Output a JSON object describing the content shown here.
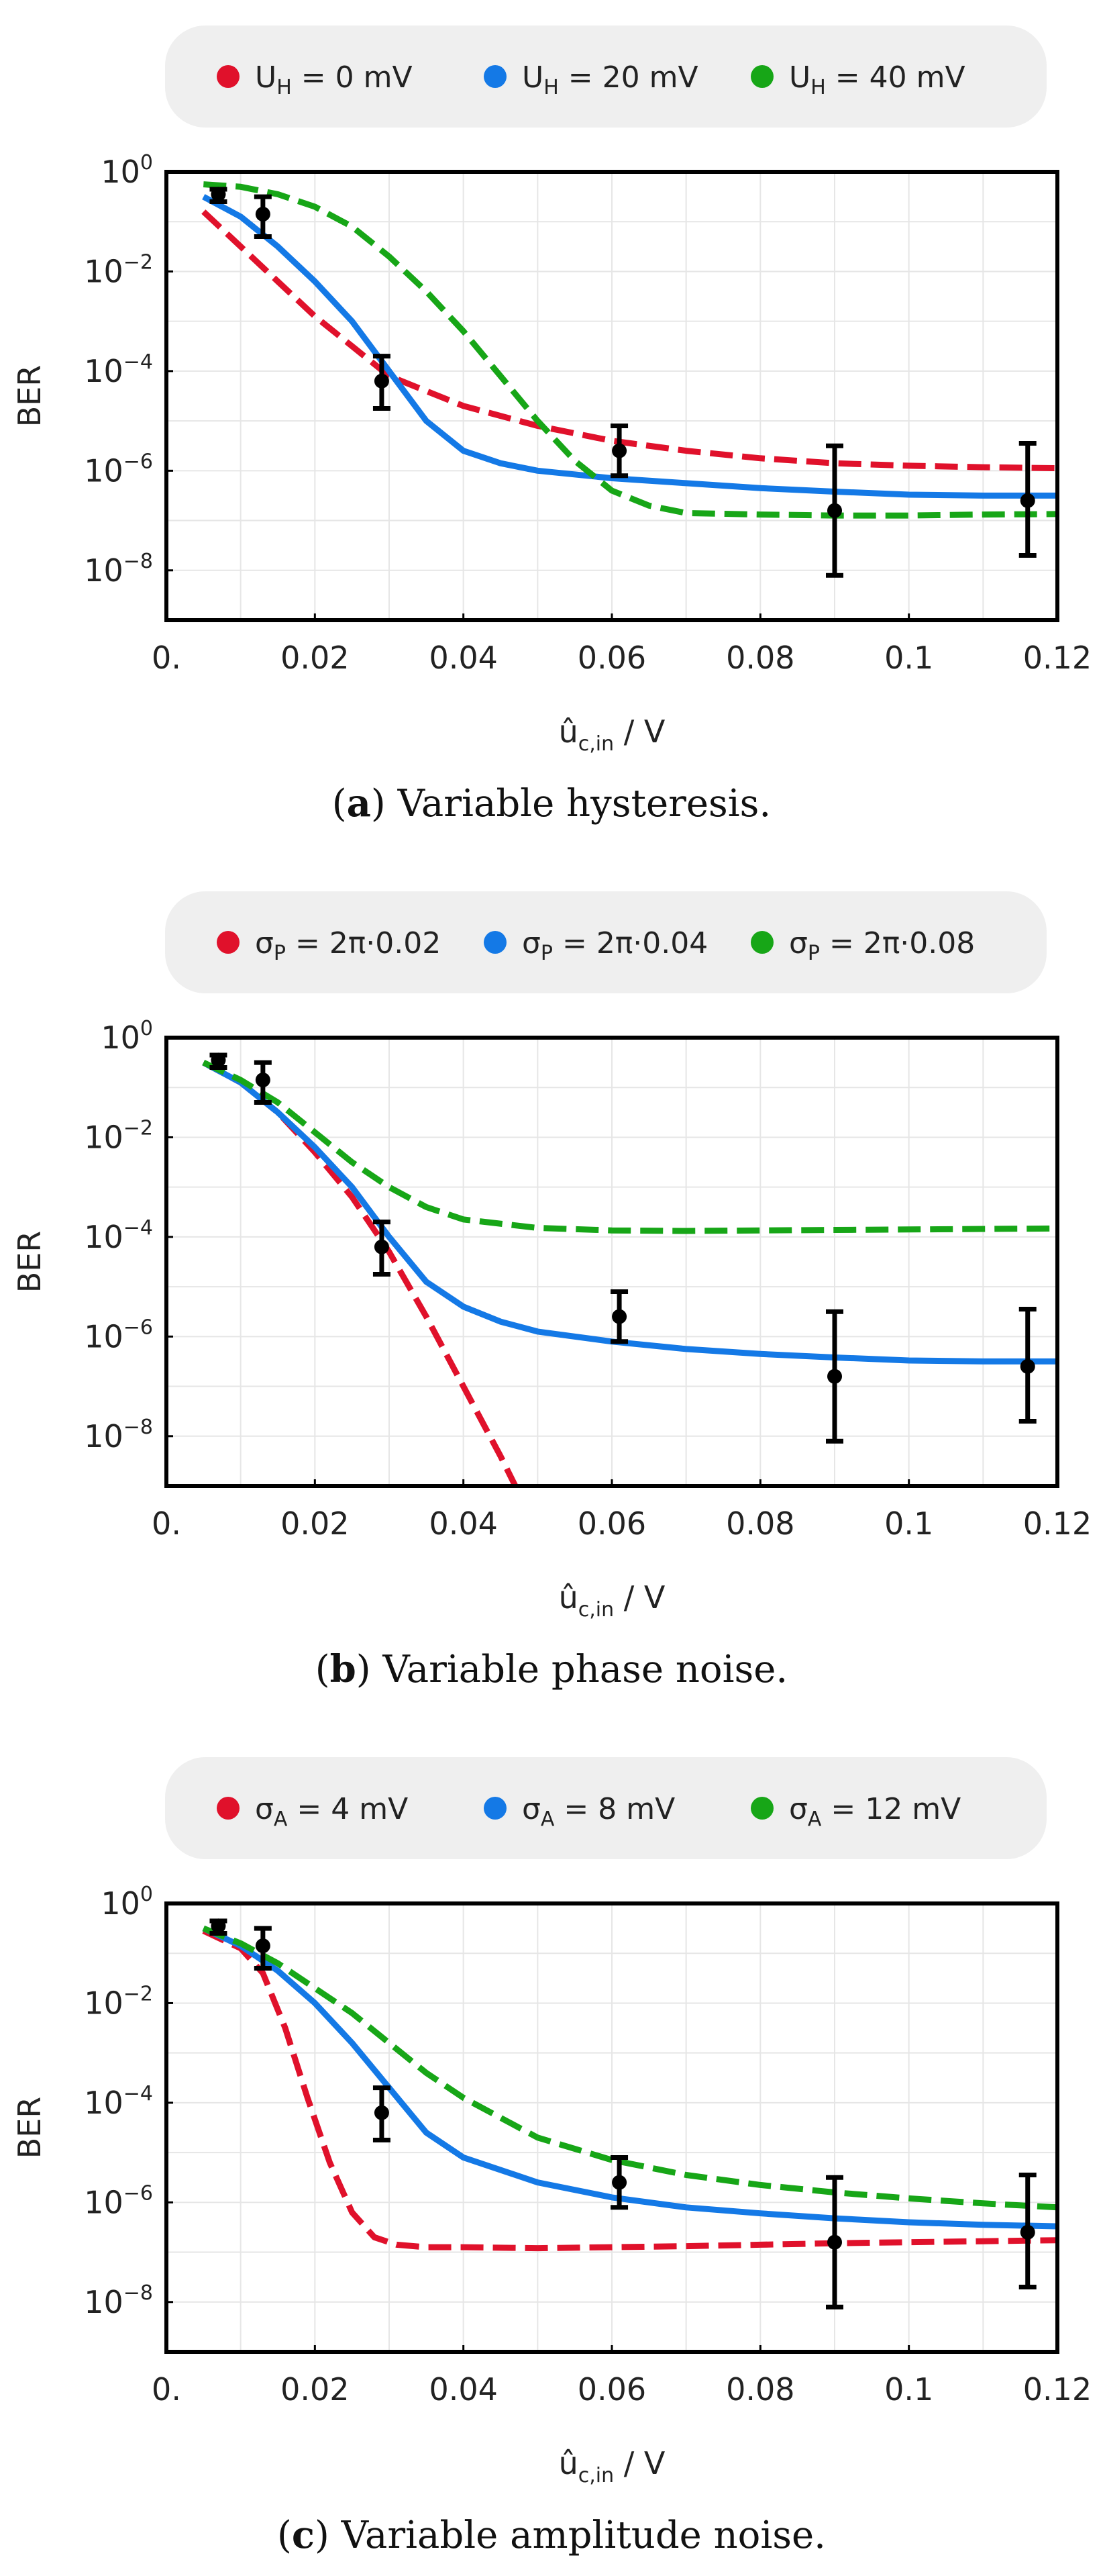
{
  "colors": {
    "red": "#e0112b",
    "blue": "#1479e6",
    "green": "#17a617",
    "legend_bg": "#efefef"
  },
  "chart_data": [
    {
      "type": "line",
      "panel": "a",
      "caption": {
        "letter": "a",
        "text": "Variable hysteresis."
      },
      "title": "",
      "xlabel": "û",
      "xlabel_sub": "c,in",
      "xlabel_unit": " / V",
      "ylabel": "BER",
      "xlim": [
        0.0,
        0.12
      ],
      "ylim_log10": [
        -9,
        0
      ],
      "x_ticks": [
        0,
        0.02,
        0.04,
        0.06,
        0.08,
        0.1,
        0.12
      ],
      "x_tick_labels": [
        "0.",
        "0.02",
        "0.04",
        "0.06",
        "0.08",
        "0.1",
        "0.12"
      ],
      "y_ticks_exp": [
        0,
        -2,
        -4,
        -6,
        -8
      ],
      "y_tick_base": "10",
      "y_tick_exps": [
        "0",
        "−2",
        "−4",
        "−6",
        "−8"
      ],
      "legend": [
        {
          "pre": "U",
          "sub": "H",
          "post": " = 0 mV",
          "color": "red"
        },
        {
          "pre": "U",
          "sub": "H",
          "post": " = 20 mV",
          "color": "blue"
        },
        {
          "pre": "U",
          "sub": "H",
          "post": " = 40 mV",
          "color": "green"
        }
      ],
      "series": [
        {
          "name": "UH = 0 mV",
          "color": "red",
          "dashed": true,
          "x": [
            0.005,
            0.01,
            0.015,
            0.02,
            0.025,
            0.03,
            0.04,
            0.05,
            0.06,
            0.07,
            0.08,
            0.09,
            0.1,
            0.11,
            0.12
          ],
          "log10y": [
            -0.8,
            -1.5,
            -2.2,
            -2.9,
            -3.5,
            -4.1,
            -4.7,
            -5.1,
            -5.4,
            -5.6,
            -5.75,
            -5.85,
            -5.9,
            -5.93,
            -5.95
          ]
        },
        {
          "name": "UH = 20 mV",
          "color": "blue",
          "dashed": false,
          "x": [
            0.005,
            0.01,
            0.015,
            0.02,
            0.025,
            0.03,
            0.035,
            0.04,
            0.045,
            0.05,
            0.06,
            0.07,
            0.08,
            0.09,
            0.1,
            0.11,
            0.12
          ],
          "log10y": [
            -0.5,
            -0.9,
            -1.5,
            -2.2,
            -3.0,
            -4.0,
            -5.0,
            -5.6,
            -5.85,
            -6.0,
            -6.15,
            -6.25,
            -6.35,
            -6.42,
            -6.48,
            -6.5,
            -6.5
          ]
        },
        {
          "name": "UH = 40 mV",
          "color": "green",
          "dashed": true,
          "x": [
            0.005,
            0.01,
            0.015,
            0.02,
            0.025,
            0.03,
            0.035,
            0.04,
            0.045,
            0.05,
            0.055,
            0.06,
            0.065,
            0.07,
            0.08,
            0.09,
            0.1,
            0.11,
            0.12
          ],
          "log10y": [
            -0.25,
            -0.3,
            -0.45,
            -0.7,
            -1.1,
            -1.7,
            -2.4,
            -3.2,
            -4.1,
            -5.0,
            -5.8,
            -6.4,
            -6.7,
            -6.85,
            -6.88,
            -6.9,
            -6.9,
            -6.88,
            -6.87
          ]
        }
      ],
      "error_bars": [
        {
          "x": 0.007,
          "log10y": -0.45,
          "low": -0.6,
          "high": -0.35
        },
        {
          "x": 0.013,
          "log10y": -0.85,
          "low": -1.3,
          "high": -0.5
        },
        {
          "x": 0.029,
          "log10y": -4.2,
          "low": -4.75,
          "high": -3.7
        },
        {
          "x": 0.061,
          "log10y": -5.6,
          "low": -6.1,
          "high": -5.1
        },
        {
          "x": 0.09,
          "log10y": -6.8,
          "low": -8.1,
          "high": -5.5
        },
        {
          "x": 0.116,
          "log10y": -6.6,
          "low": -7.7,
          "high": -5.45
        }
      ]
    },
    {
      "type": "line",
      "panel": "b",
      "caption": {
        "letter": "b",
        "text": "Variable phase noise."
      },
      "title": "",
      "xlabel": "û",
      "xlabel_sub": "c,in",
      "xlabel_unit": " / V",
      "ylabel": "BER",
      "xlim": [
        0.0,
        0.12
      ],
      "ylim_log10": [
        -9,
        0
      ],
      "x_ticks": [
        0,
        0.02,
        0.04,
        0.06,
        0.08,
        0.1,
        0.12
      ],
      "x_tick_labels": [
        "0.",
        "0.02",
        "0.04",
        "0.06",
        "0.08",
        "0.1",
        "0.12"
      ],
      "y_ticks_exp": [
        0,
        -2,
        -4,
        -6,
        -8
      ],
      "y_tick_base": "10",
      "y_tick_exps": [
        "0",
        "−2",
        "−4",
        "−6",
        "−8"
      ],
      "legend": [
        {
          "pre": "σ",
          "sub": "P",
          "post": " = 2π·0.02",
          "color": "red"
        },
        {
          "pre": "σ",
          "sub": "P",
          "post": " = 2π·0.04",
          "color": "blue"
        },
        {
          "pre": "σ",
          "sub": "P",
          "post": " = 2π·0.08",
          "color": "green"
        }
      ],
      "series": [
        {
          "name": "σP = 2π·0.02",
          "color": "red",
          "dashed": true,
          "x": [
            0.005,
            0.01,
            0.015,
            0.02,
            0.025,
            0.03,
            0.035,
            0.04,
            0.045,
            0.047
          ],
          "log10y": [
            -0.5,
            -0.9,
            -1.5,
            -2.3,
            -3.2,
            -4.3,
            -5.6,
            -7.0,
            -8.4,
            -9.0
          ]
        },
        {
          "name": "σP = 2π·0.04",
          "color": "blue",
          "dashed": false,
          "x": [
            0.005,
            0.01,
            0.015,
            0.02,
            0.025,
            0.03,
            0.035,
            0.04,
            0.045,
            0.05,
            0.06,
            0.07,
            0.08,
            0.09,
            0.1,
            0.11,
            0.12
          ],
          "log10y": [
            -0.5,
            -0.9,
            -1.5,
            -2.2,
            -3.0,
            -4.0,
            -4.9,
            -5.4,
            -5.7,
            -5.9,
            -6.1,
            -6.25,
            -6.35,
            -6.42,
            -6.48,
            -6.5,
            -6.5
          ]
        },
        {
          "name": "σP = 2π·0.08",
          "color": "green",
          "dashed": true,
          "x": [
            0.005,
            0.01,
            0.015,
            0.02,
            0.025,
            0.03,
            0.035,
            0.04,
            0.05,
            0.06,
            0.07,
            0.08,
            0.09,
            0.1,
            0.11,
            0.12
          ],
          "log10y": [
            -0.5,
            -0.85,
            -1.3,
            -1.9,
            -2.5,
            -3.0,
            -3.4,
            -3.65,
            -3.82,
            -3.87,
            -3.88,
            -3.87,
            -3.86,
            -3.85,
            -3.84,
            -3.83
          ]
        }
      ],
      "error_bars": [
        {
          "x": 0.007,
          "log10y": -0.45,
          "low": -0.6,
          "high": -0.35
        },
        {
          "x": 0.013,
          "log10y": -0.85,
          "low": -1.3,
          "high": -0.5
        },
        {
          "x": 0.029,
          "log10y": -4.2,
          "low": -4.75,
          "high": -3.7
        },
        {
          "x": 0.061,
          "log10y": -5.6,
          "low": -6.1,
          "high": -5.1
        },
        {
          "x": 0.09,
          "log10y": -6.8,
          "low": -8.1,
          "high": -5.5
        },
        {
          "x": 0.116,
          "log10y": -6.6,
          "low": -7.7,
          "high": -5.45
        }
      ]
    },
    {
      "type": "line",
      "panel": "c",
      "caption": {
        "letter": "c",
        "text": "Variable amplitude noise."
      },
      "title": "",
      "xlabel": "û",
      "xlabel_sub": "c,in",
      "xlabel_unit": " / V",
      "ylabel": "BER",
      "xlim": [
        0.0,
        0.12
      ],
      "ylim_log10": [
        -9,
        0
      ],
      "x_ticks": [
        0,
        0.02,
        0.04,
        0.06,
        0.08,
        0.1,
        0.12
      ],
      "x_tick_labels": [
        "0.",
        "0.02",
        "0.04",
        "0.06",
        "0.08",
        "0.1",
        "0.12"
      ],
      "y_ticks_exp": [
        0,
        -2,
        -4,
        -6,
        -8
      ],
      "y_tick_base": "10",
      "y_tick_exps": [
        "0",
        "−2",
        "−4",
        "−6",
        "−8"
      ],
      "legend": [
        {
          "pre": "σ",
          "sub": "A",
          "post": " = 4 mV",
          "color": "red"
        },
        {
          "pre": "σ",
          "sub": "A",
          "post": " = 8 mV",
          "color": "blue"
        },
        {
          "pre": "σ",
          "sub": "A",
          "post": " = 12 mV",
          "color": "green"
        }
      ],
      "series": [
        {
          "name": "σA = 4 mV",
          "color": "red",
          "dashed": true,
          "x": [
            0.005,
            0.01,
            0.013,
            0.016,
            0.019,
            0.022,
            0.025,
            0.028,
            0.031,
            0.035,
            0.04,
            0.05,
            0.06,
            0.07,
            0.08,
            0.09,
            0.1,
            0.11,
            0.12
          ],
          "log10y": [
            -0.55,
            -0.9,
            -1.4,
            -2.5,
            -3.9,
            -5.2,
            -6.2,
            -6.7,
            -6.85,
            -6.9,
            -6.9,
            -6.92,
            -6.9,
            -6.88,
            -6.85,
            -6.82,
            -6.8,
            -6.78,
            -6.76
          ]
        },
        {
          "name": "σA = 8 mV",
          "color": "blue",
          "dashed": false,
          "x": [
            0.005,
            0.01,
            0.015,
            0.02,
            0.025,
            0.03,
            0.035,
            0.04,
            0.05,
            0.06,
            0.07,
            0.08,
            0.09,
            0.1,
            0.11,
            0.12
          ],
          "log10y": [
            -0.5,
            -0.85,
            -1.35,
            -2.0,
            -2.8,
            -3.7,
            -4.6,
            -5.1,
            -5.6,
            -5.9,
            -6.1,
            -6.22,
            -6.32,
            -6.4,
            -6.45,
            -6.48
          ]
        },
        {
          "name": "σA = 12 mV",
          "color": "green",
          "dashed": true,
          "x": [
            0.005,
            0.01,
            0.015,
            0.02,
            0.025,
            0.03,
            0.035,
            0.04,
            0.045,
            0.05,
            0.06,
            0.07,
            0.08,
            0.09,
            0.1,
            0.11,
            0.12
          ],
          "log10y": [
            -0.5,
            -0.8,
            -1.2,
            -1.7,
            -2.2,
            -2.8,
            -3.4,
            -3.9,
            -4.3,
            -4.7,
            -5.15,
            -5.45,
            -5.65,
            -5.8,
            -5.92,
            -6.02,
            -6.1
          ]
        }
      ],
      "error_bars": [
        {
          "x": 0.007,
          "log10y": -0.45,
          "low": -0.6,
          "high": -0.35
        },
        {
          "x": 0.013,
          "log10y": -0.85,
          "low": -1.3,
          "high": -0.5
        },
        {
          "x": 0.029,
          "log10y": -4.2,
          "low": -4.75,
          "high": -3.7
        },
        {
          "x": 0.061,
          "log10y": -5.6,
          "low": -6.1,
          "high": -5.1
        },
        {
          "x": 0.09,
          "log10y": -6.8,
          "low": -8.1,
          "high": -5.5
        },
        {
          "x": 0.116,
          "log10y": -6.6,
          "low": -7.7,
          "high": -5.45
        }
      ]
    }
  ]
}
